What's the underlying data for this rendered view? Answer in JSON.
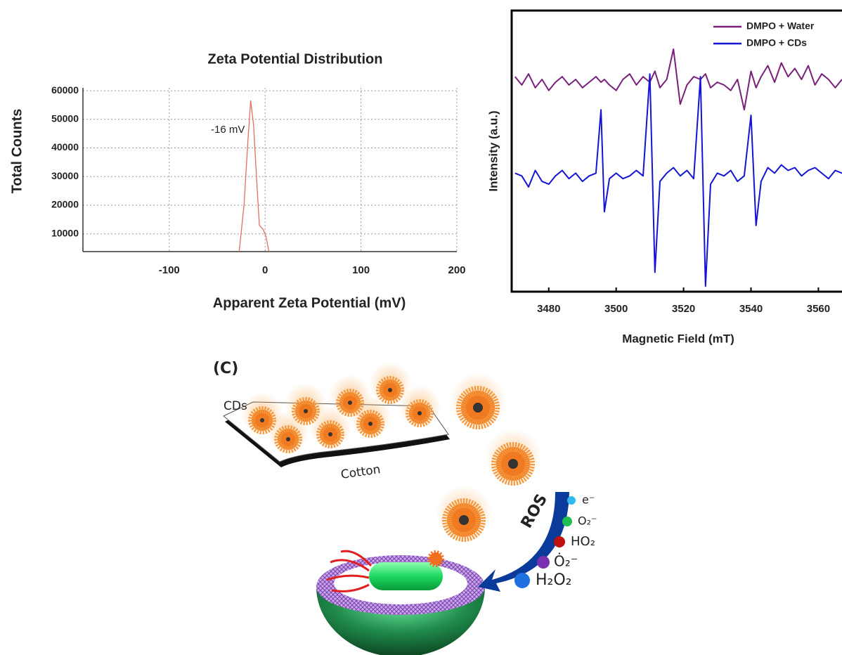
{
  "chart_data": [
    {
      "type": "line",
      "title": "Zeta Potential Distribution",
      "x_label": "Apparent Zeta Potential (mV)",
      "y_label": "Total Counts",
      "annotation": "-16 mV",
      "color": "#e07060",
      "grid": true,
      "x": [
        -27,
        -22,
        -18,
        -15,
        -12,
        -9,
        -6,
        -2,
        1,
        4
      ],
      "values": [
        3800,
        20000,
        42000,
        56500,
        48000,
        30000,
        13000,
        11500,
        9000,
        3800
      ],
      "xlim": [
        -190,
        200
      ],
      "ylim": [
        3800,
        61000
      ],
      "xticks": [
        -100,
        0,
        100,
        200
      ],
      "yticks": [
        10000,
        20000,
        30000,
        40000,
        50000,
        60000
      ]
    },
    {
      "type": "line",
      "x_label": "Magnetic Field (mT)",
      "y_label": "Intensity (a.u.)",
      "legend": "upper right",
      "grid": false,
      "x": [
        3470,
        3472,
        3474,
        3476,
        3478,
        3480,
        3482,
        3484,
        3486,
        3488,
        3490,
        3492,
        3494,
        3495.5,
        3496.5,
        3498,
        3500,
        3502,
        3504,
        3506,
        3508,
        3510,
        3511.5,
        3513,
        3515,
        3517,
        3519,
        3521,
        3523,
        3525,
        3526.5,
        3528,
        3530,
        3532,
        3534,
        3536,
        3538,
        3540,
        3541.5,
        3543,
        3545,
        3547,
        3549,
        3551,
        3553,
        3555,
        3557,
        3559,
        3561,
        3563,
        3565,
        3567
      ],
      "series": [
        {
          "name": "DMPO + Water",
          "color": "#7a1f7a",
          "values": [
            76,
            73,
            77,
            72,
            75,
            71,
            74,
            76,
            73,
            75,
            72,
            74,
            76,
            74,
            75,
            73,
            71,
            75,
            77,
            73,
            76,
            74,
            78,
            72,
            75,
            86,
            66,
            73,
            76,
            75,
            77,
            72,
            74,
            73,
            71,
            75,
            64,
            78,
            72,
            76,
            80,
            74,
            81,
            76,
            79,
            75,
            80,
            73,
            77,
            75,
            72,
            75
          ]
        },
        {
          "name": "DMPO + CDs",
          "color": "#1414d2",
          "values": [
            41,
            40,
            36,
            42,
            38,
            37,
            40,
            42,
            39,
            41,
            38,
            40,
            41,
            64,
            27,
            39,
            41,
            39,
            40,
            42,
            40,
            77,
            5,
            38,
            41,
            43,
            40,
            42,
            39,
            76,
            0,
            37,
            41,
            40,
            42,
            38,
            40,
            62,
            22,
            38,
            43,
            41,
            44,
            42,
            43,
            40,
            42,
            43,
            41,
            39,
            42,
            41
          ]
        }
      ],
      "xlim": [
        3469,
        3567
      ],
      "ylim": [
        -2,
        100
      ],
      "xticks": [
        3480,
        3500,
        3520,
        3540,
        3560
      ]
    }
  ],
  "diagram": {
    "panel_label": "(C)",
    "sheet_top": "CDs",
    "sheet_bottom": "Cotton",
    "arrow": "ROS",
    "species": [
      "e⁻",
      "O₂⁻",
      "HO₂",
      "Ȯ₂⁻",
      "H₂O₂"
    ]
  }
}
